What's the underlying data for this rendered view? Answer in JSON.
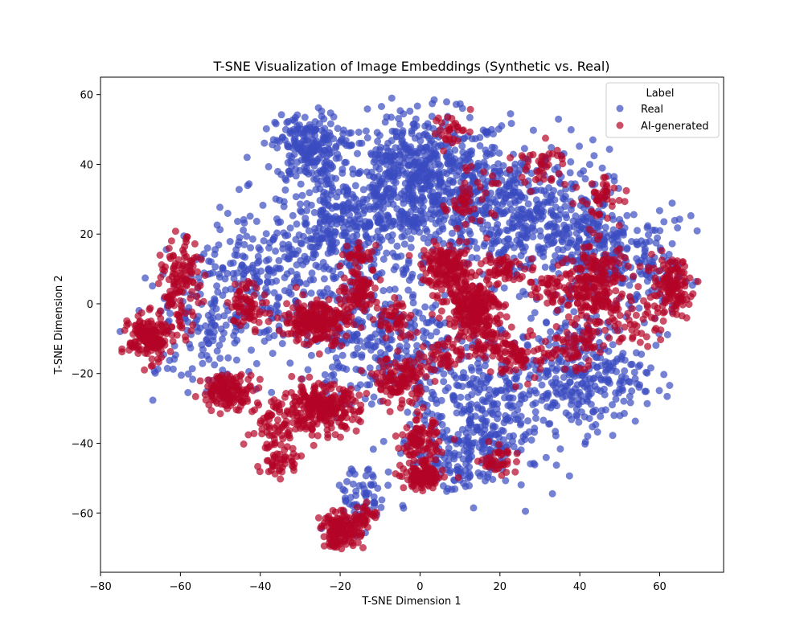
{
  "chart_data": {
    "type": "scatter",
    "title": "T-SNE Visualization of Image Embeddings (Synthetic vs. Real)",
    "xlabel": "T-SNE Dimension 1",
    "ylabel": "T-SNE Dimension 2",
    "xlim": [
      -80,
      76
    ],
    "ylim": [
      -77,
      65
    ],
    "xticks": [
      -80,
      -60,
      -40,
      -20,
      0,
      20,
      40,
      60
    ],
    "yticks": [
      -60,
      -40,
      -20,
      0,
      20,
      40,
      60
    ],
    "xtick_labels": [
      "−80",
      "−60",
      "−40",
      "−20",
      "0",
      "20",
      "40",
      "60"
    ],
    "ytick_labels": [
      "−60",
      "−40",
      "−20",
      "0",
      "20",
      "40",
      "60"
    ],
    "grid": false,
    "legend": {
      "title": "Label",
      "placement": "top-right",
      "entries": [
        "Real",
        "AI-generated"
      ]
    },
    "series": [
      {
        "name": "Real",
        "color": "#3b4cc0",
        "opacity": 0.7,
        "clusters": [
          {
            "cx": 0,
            "cy": 35,
            "sx": 14,
            "sy": 12,
            "n": 700
          },
          {
            "cx": -28,
            "cy": 45,
            "sx": 5,
            "sy": 6,
            "n": 200
          },
          {
            "cx": -20,
            "cy": 20,
            "sx": 10,
            "sy": 10,
            "n": 300
          },
          {
            "cx": 25,
            "cy": 25,
            "sx": 14,
            "sy": 12,
            "n": 450
          },
          {
            "cx": 45,
            "cy": 15,
            "sx": 8,
            "sy": 10,
            "n": 200
          },
          {
            "cx": 40,
            "cy": -20,
            "sx": 10,
            "sy": 10,
            "n": 300
          },
          {
            "cx": 15,
            "cy": -30,
            "sx": 10,
            "sy": 12,
            "n": 280
          },
          {
            "cx": -10,
            "cy": -10,
            "sx": 12,
            "sy": 12,
            "n": 300
          },
          {
            "cx": -40,
            "cy": 5,
            "sx": 10,
            "sy": 14,
            "n": 200
          },
          {
            "cx": -55,
            "cy": -5,
            "sx": 10,
            "sy": 12,
            "n": 130
          },
          {
            "cx": 60,
            "cy": 10,
            "sx": 5,
            "sy": 10,
            "n": 80
          },
          {
            "cx": -15,
            "cy": -55,
            "sx": 5,
            "sy": 6,
            "n": 60
          },
          {
            "cx": 10,
            "cy": -45,
            "sx": 8,
            "sy": 6,
            "n": 120
          }
        ]
      },
      {
        "name": "AI-generated",
        "color": "#b40426",
        "opacity": 0.7,
        "clusters": [
          {
            "cx": -68,
            "cy": -10,
            "sx": 3,
            "sy": 4,
            "n": 170
          },
          {
            "cx": -60,
            "cy": 5,
            "sx": 3,
            "sy": 8,
            "n": 130
          },
          {
            "cx": -48,
            "cy": -25,
            "sx": 4,
            "sy": 3,
            "n": 150
          },
          {
            "cx": -43,
            "cy": 0,
            "sx": 3,
            "sy": 4,
            "n": 70
          },
          {
            "cx": -26,
            "cy": -5,
            "sx": 5,
            "sy": 4,
            "n": 220
          },
          {
            "cx": -25,
            "cy": -30,
            "sx": 6,
            "sy": 4,
            "n": 260
          },
          {
            "cx": -36,
            "cy": -35,
            "sx": 4,
            "sy": 6,
            "n": 70
          },
          {
            "cx": -15,
            "cy": 4,
            "sx": 3,
            "sy": 4,
            "n": 90
          },
          {
            "cx": -15,
            "cy": 14,
            "sx": 2,
            "sy": 2,
            "n": 30
          },
          {
            "cx": -6,
            "cy": -5,
            "sx": 3,
            "sy": 4,
            "n": 50
          },
          {
            "cx": -5,
            "cy": -22,
            "sx": 4,
            "sy": 4,
            "n": 120
          },
          {
            "cx": 0,
            "cy": -40,
            "sx": 3,
            "sy": 4,
            "n": 100
          },
          {
            "cx": 1,
            "cy": -50,
            "sx": 3,
            "sy": 2,
            "n": 130
          },
          {
            "cx": -20,
            "cy": -65,
            "sx": 3,
            "sy": 3,
            "n": 140
          },
          {
            "cx": -14,
            "cy": -61,
            "sx": 2,
            "sy": 2,
            "n": 40
          },
          {
            "cx": 7,
            "cy": 10,
            "sx": 4,
            "sy": 4,
            "n": 160
          },
          {
            "cx": 13,
            "cy": 0,
            "sx": 4,
            "sy": 4,
            "n": 220
          },
          {
            "cx": 20,
            "cy": 10,
            "sx": 3,
            "sy": 3,
            "n": 50
          },
          {
            "cx": 15,
            "cy": -10,
            "sx": 4,
            "sy": 4,
            "n": 70
          },
          {
            "cx": 25,
            "cy": -15,
            "sx": 4,
            "sy": 4,
            "n": 80
          },
          {
            "cx": 12,
            "cy": 30,
            "sx": 4,
            "sy": 5,
            "n": 50
          },
          {
            "cx": 30,
            "cy": 40,
            "sx": 4,
            "sy": 4,
            "n": 40
          },
          {
            "cx": 44,
            "cy": 5,
            "sx": 5,
            "sy": 8,
            "n": 220
          },
          {
            "cx": 45,
            "cy": 30,
            "sx": 3,
            "sy": 4,
            "n": 40
          },
          {
            "cx": 63,
            "cy": 5,
            "sx": 3,
            "sy": 5,
            "n": 120
          },
          {
            "cx": 38,
            "cy": -12,
            "sx": 4,
            "sy": 4,
            "n": 60
          },
          {
            "cx": 5,
            "cy": -15,
            "sx": 3,
            "sy": 3,
            "n": 40
          },
          {
            "cx": 20,
            "cy": -45,
            "sx": 3,
            "sy": 3,
            "n": 40
          },
          {
            "cx": 8,
            "cy": 50,
            "sx": 3,
            "sy": 3,
            "n": 30
          },
          {
            "cx": -35,
            "cy": -45,
            "sx": 3,
            "sy": 3,
            "n": 40
          },
          {
            "cx": 55,
            "cy": -5,
            "sx": 4,
            "sy": 5,
            "n": 40
          },
          {
            "cx": 33,
            "cy": 5,
            "sx": 4,
            "sy": 4,
            "n": 50
          }
        ]
      }
    ]
  }
}
